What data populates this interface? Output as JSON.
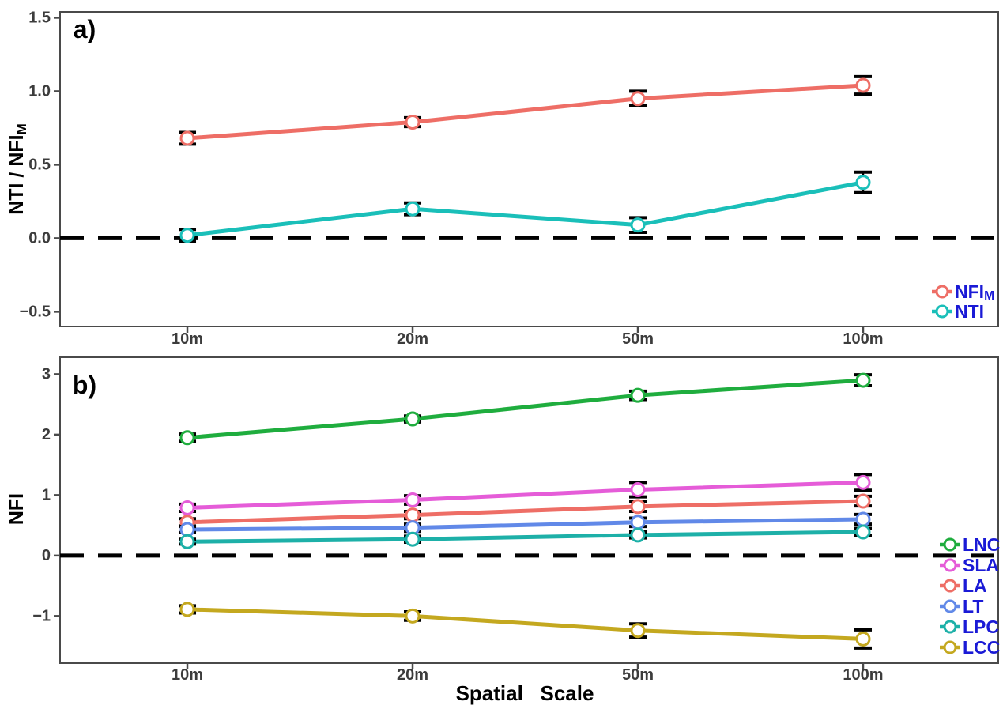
{
  "figure": {
    "background": "#ffffff",
    "axis_color": "#4a4a4a",
    "tick_label_color": "#3c3c3c",
    "legend_text_color": "#1a1ad6",
    "error_bar_color": "#000000",
    "zero_line": {
      "style": "dashed",
      "color": "#000000",
      "value": 0
    }
  },
  "chart_data": [
    {
      "type": "line",
      "panel_label": "a)",
      "ylabel": {
        "text": "NTI / NFI",
        "sub": "M"
      },
      "xlabel": "",
      "categories": [
        "10m",
        "20m",
        "50m",
        "100m"
      ],
      "yticks": [
        1.5,
        1.0,
        0.5,
        0.0,
        -0.5
      ],
      "ytick_labels": [
        "1.5",
        "1.0",
        "0.5",
        "0.0",
        "−0.5"
      ],
      "ylim": [
        -0.6,
        1.54
      ],
      "grid": false,
      "zero_line_y": 0,
      "legend_position": "inside-bottom-right",
      "series": [
        {
          "label": "NFI",
          "sub": "M",
          "color": "#ee6e66",
          "values": [
            0.68,
            0.79,
            0.95,
            1.04
          ],
          "errors": [
            0.04,
            0.03,
            0.05,
            0.06
          ]
        },
        {
          "label": "NTI",
          "sub": "",
          "color": "#1abfb9",
          "values": [
            0.02,
            0.2,
            0.09,
            0.38
          ],
          "errors": [
            0.04,
            0.04,
            0.05,
            0.07
          ]
        }
      ]
    },
    {
      "type": "line",
      "panel_label": "b)",
      "ylabel": {
        "text": "NFI",
        "sub": ""
      },
      "xlabel": "Spatial Scale",
      "categories": [
        "10m",
        "20m",
        "50m",
        "100m"
      ],
      "yticks": [
        3,
        2,
        1,
        0,
        -1
      ],
      "ytick_labels": [
        "3",
        "2",
        "1",
        "0",
        "−1"
      ],
      "ylim": [
        -1.78,
        3.28
      ],
      "grid": false,
      "zero_line_y": 0,
      "legend_position": "inside-right",
      "series": [
        {
          "label": "LNC",
          "sub": "",
          "color": "#1fad3e",
          "values": [
            1.95,
            2.26,
            2.65,
            2.9
          ],
          "errors": [
            0.06,
            0.05,
            0.07,
            0.09
          ]
        },
        {
          "label": "SLA",
          "sub": "",
          "color": "#e55cd8",
          "values": [
            0.79,
            0.92,
            1.09,
            1.21
          ],
          "errors": [
            0.06,
            0.07,
            0.12,
            0.13
          ]
        },
        {
          "label": "LA",
          "sub": "",
          "color": "#ee6e66",
          "values": [
            0.55,
            0.67,
            0.81,
            0.9
          ],
          "errors": [
            0.06,
            0.06,
            0.08,
            0.08
          ]
        },
        {
          "label": "LT",
          "sub": "",
          "color": "#6189e8",
          "values": [
            0.43,
            0.46,
            0.55,
            0.6
          ],
          "errors": [
            0.05,
            0.06,
            0.07,
            0.08
          ]
        },
        {
          "label": "LPC",
          "sub": "",
          "color": "#1db0a8",
          "values": [
            0.23,
            0.27,
            0.34,
            0.39
          ],
          "errors": [
            0.04,
            0.05,
            0.05,
            0.06
          ]
        },
        {
          "label": "LCC",
          "sub": "",
          "color": "#c4a81f",
          "values": [
            -0.89,
            -1.0,
            -1.24,
            -1.38
          ],
          "errors": [
            0.06,
            0.07,
            0.11,
            0.15
          ]
        }
      ]
    }
  ]
}
